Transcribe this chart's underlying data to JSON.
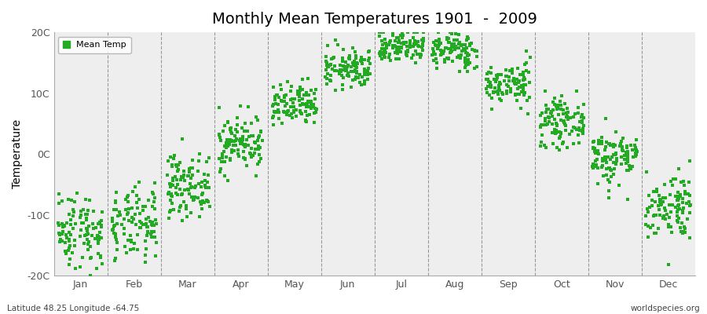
{
  "title": "Monthly Mean Temperatures 1901  -  2009",
  "ylabel": "Temperature",
  "bottom_left": "Latitude 48.25 Longitude -64.75",
  "bottom_right": "worldspecies.org",
  "legend_label": "Mean Temp",
  "dot_color": "#22AA22",
  "background_color": "#EEEEEE",
  "ylim": [
    -20,
    20
  ],
  "ytick_labels": [
    "-20C",
    "-10C",
    "0C",
    "10C",
    "20C"
  ],
  "ytick_values": [
    -20,
    -10,
    0,
    10,
    20
  ],
  "months": [
    "Jan",
    "Feb",
    "Mar",
    "Apr",
    "May",
    "Jun",
    "Jul",
    "Aug",
    "Sep",
    "Oct",
    "Nov",
    "Dec"
  ],
  "monthly_means": [
    -12.5,
    -11.8,
    -5.2,
    1.8,
    7.8,
    14.0,
    17.8,
    17.0,
    11.5,
    5.2,
    -0.5,
    -8.5
  ],
  "monthly_stds": [
    3.2,
    3.0,
    2.5,
    2.3,
    1.8,
    1.6,
    1.4,
    1.5,
    1.7,
    1.9,
    2.3,
    2.8
  ],
  "n_years": 109,
  "title_fontsize": 14,
  "axis_fontsize": 10,
  "tick_fontsize": 9,
  "dot_size": 5,
  "seed": 42
}
